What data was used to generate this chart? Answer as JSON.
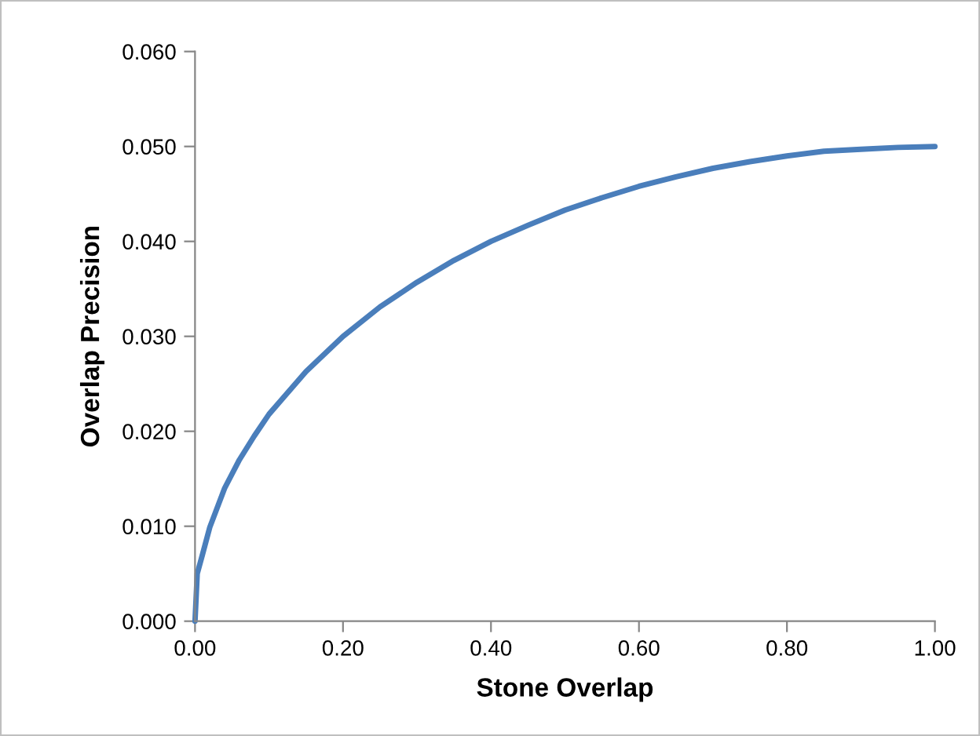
{
  "chart_data": {
    "type": "line",
    "xlabel": "Stone Overlap",
    "ylabel": "Overlap Precision",
    "series": [
      {
        "color": "#4a7ebb",
        "x": [
          0,
          0.003,
          0.01,
          0.02,
          0.04,
          0.06,
          0.08,
          0.1,
          0.15,
          0.2,
          0.25,
          0.3,
          0.35,
          0.4,
          0.45,
          0.5,
          0.55,
          0.6,
          0.65,
          0.7,
          0.75,
          0.8,
          0.85,
          0.9,
          0.95,
          1.0
        ],
        "values": [
          0,
          0.005,
          0.007,
          0.0099,
          0.014,
          0.017,
          0.0195,
          0.0218,
          0.0263,
          0.03,
          0.0331,
          0.0357,
          0.038,
          0.04,
          0.0417,
          0.0433,
          0.0446,
          0.0458,
          0.0468,
          0.0477,
          0.0484,
          0.049,
          0.0495,
          0.0497,
          0.0499,
          0.05
        ]
      }
    ],
    "xlim": [
      0,
      1
    ],
    "ylim": [
      0,
      0.06
    ],
    "xticks": [
      {
        "value": 0,
        "label": "0.00"
      },
      {
        "value": 0.2,
        "label": "0.20"
      },
      {
        "value": 0.4,
        "label": "0.40"
      },
      {
        "value": 0.6,
        "label": "0.60"
      },
      {
        "value": 0.8,
        "label": "0.80"
      },
      {
        "value": 1,
        "label": "1.00"
      }
    ],
    "yticks": [
      {
        "value": 0,
        "label": "0.000"
      },
      {
        "value": 0.01,
        "label": "0.010"
      },
      {
        "value": 0.02,
        "label": "0.020"
      },
      {
        "value": 0.03,
        "label": "0.030"
      },
      {
        "value": 0.04,
        "label": "0.040"
      },
      {
        "value": 0.05,
        "label": "0.050"
      },
      {
        "value": 0.06,
        "label": "0.060"
      }
    ],
    "grid": false,
    "legend": false,
    "marker": "none",
    "line_style": "solid"
  }
}
